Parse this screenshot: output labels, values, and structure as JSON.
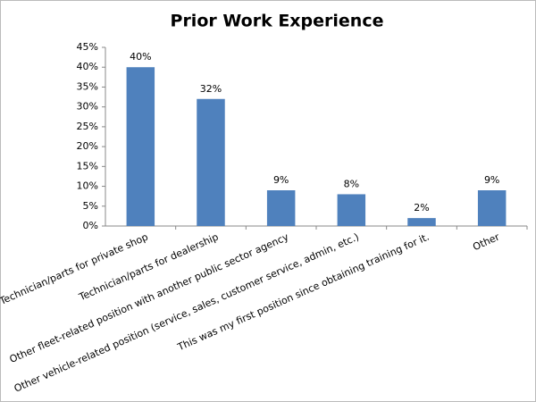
{
  "chart_data": {
    "type": "bar",
    "title": "Prior Work Experience",
    "categories": [
      "Technician/parts for private shop",
      "Technician/parts for dealership",
      "Other fleet-related position with another public sector agency",
      "Other vehicle-related position (service, sales, customer service, admin, etc.)",
      "This was my first position since obtaining training for it.",
      "Other"
    ],
    "values": [
      40,
      32,
      9,
      8,
      2,
      9
    ],
    "value_labels": [
      "40%",
      "32%",
      "9%",
      "8%",
      "2%",
      "9%"
    ],
    "color": "#4f81bd",
    "ylim": [
      0,
      45
    ],
    "yticks": [
      {
        "value": 0,
        "label": "0%"
      },
      {
        "value": 5,
        "label": "5%"
      },
      {
        "value": 10,
        "label": "10%"
      },
      {
        "value": 15,
        "label": "15%"
      },
      {
        "value": 20,
        "label": "20%"
      },
      {
        "value": 25,
        "label": "25%"
      },
      {
        "value": 30,
        "label": "30%"
      },
      {
        "value": 35,
        "label": "35%"
      },
      {
        "value": 40,
        "label": "40%"
      },
      {
        "value": 45,
        "label": "45%"
      }
    ],
    "grid": false
  }
}
